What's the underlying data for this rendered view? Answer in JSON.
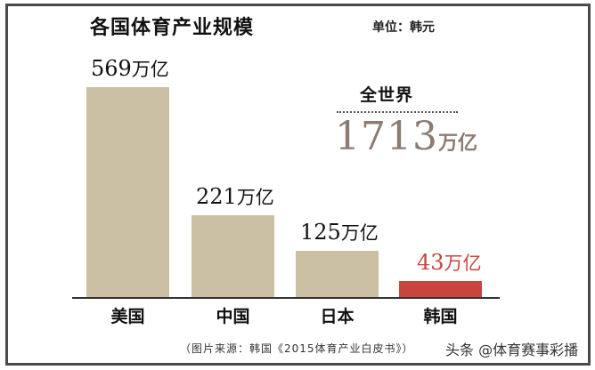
{
  "chart_data": {
    "type": "bar",
    "title": "各国体育产业规模",
    "unit_label": "单位：韩元",
    "categories": [
      "美国",
      "中国",
      "日本",
      "韩国"
    ],
    "values": [
      569,
      221,
      125,
      43
    ],
    "value_labels": [
      "569",
      "221",
      "125",
      "43"
    ],
    "value_unit": "万亿",
    "bar_colors": [
      "#cbbfa4",
      "#cbbfa4",
      "#cbbfa4",
      "#c8443c"
    ],
    "label_colors": [
      "#111111",
      "#111111",
      "#111111",
      "#c8443c"
    ],
    "annotation": {
      "label": "全世界",
      "value": "1713",
      "unit": "万亿",
      "color": "#8c7b70"
    },
    "xlabel": "",
    "ylabel": "",
    "ylim": [
      0,
      600
    ],
    "grid": false,
    "legend": null
  },
  "footer": {
    "source": "（图片来源：韩国《2015体育产业白皮书》）",
    "watermark": "头条 @体育赛事彩播"
  }
}
